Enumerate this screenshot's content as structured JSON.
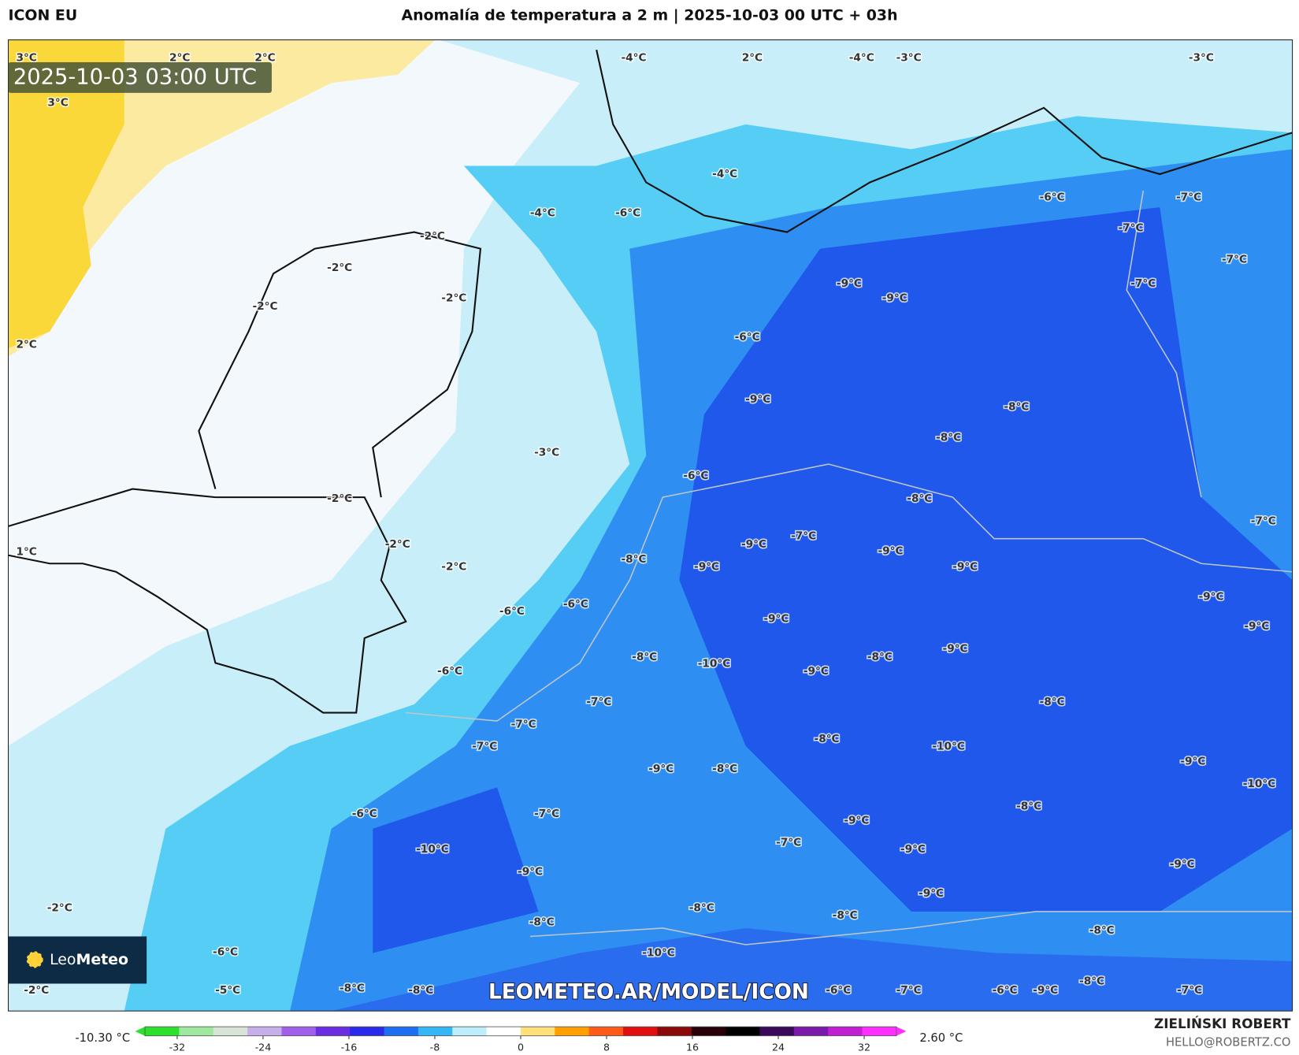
{
  "header": {
    "model": "ICON EU",
    "title": "Anomalía de temperatura a 2 m | 2025-10-03 00 UTC + 03h"
  },
  "timestamp": "2025-10-03 03:00 UTC",
  "logo": {
    "part1": "Leo",
    "part2": "Meteo"
  },
  "watermark": "LEOMETEO.AR/MODEL/ICON",
  "map": {
    "labels": [
      "3°C",
      "2°C",
      "2°C",
      "3°C",
      "2°C",
      "1°C",
      "-2°C",
      "-2°C",
      "-6°C",
      "-5°C",
      "-4°C",
      "2°C",
      "-4°C",
      "-3°C",
      "-3°C",
      "-4°C",
      "-4°C",
      "-6°C",
      "-2°C",
      "-2°C",
      "-2°C",
      "-2°C",
      "-6°C",
      "-7°C",
      "-7°C",
      "-7°C",
      "-7°C",
      "-9°C",
      "-9°C",
      "-6°C",
      "-9°C",
      "-8°C",
      "-8°C",
      "-3°C",
      "-6°C",
      "-2°C",
      "-8°C",
      "-7°C",
      "-2°C",
      "-9°C",
      "-7°C",
      "-9°C",
      "-9°C",
      "-2°C",
      "-8°C",
      "-9°C",
      "-9°C",
      "-6°C",
      "-6°C",
      "-9°C",
      "-9°C",
      "-9°C",
      "-8°C",
      "-10°C",
      "-9°C",
      "-8°C",
      "-6°C",
      "-8°C",
      "-7°C",
      "-7°C",
      "-7°C",
      "-8°C",
      "-10°C",
      "-9°C",
      "-10°C",
      "-9°C",
      "-8°C",
      "-6°C",
      "-7°C",
      "-8°C",
      "-9°C",
      "-7°C",
      "-10°C",
      "-9°C",
      "-9°C",
      "-9°C",
      "-9°C",
      "-8°C",
      "-8°C",
      "-8°C",
      "-8°C",
      "-10°C",
      "-8°C",
      "-8°C",
      "-8°C",
      "-6°C",
      "-7°C",
      "-6°C",
      "-9°C",
      "-7°C"
    ]
  },
  "colorbar": {
    "min_label": "-10.30 °C",
    "max_label": "2.60 °C",
    "lim": [
      -35,
      35
    ],
    "ticks": [
      -32,
      -24,
      -16,
      -8,
      0,
      8,
      16,
      24,
      32
    ],
    "colors": [
      "#2ee02e",
      "#9fe89f",
      "#d8e4d8",
      "#c7b0ea",
      "#a060e8",
      "#6a2ee0",
      "#2a2ae8",
      "#1f6ef0",
      "#35b7f5",
      "#bfeefb",
      "#ffffff",
      "#ffe07a",
      "#ffa000",
      "#ff5a1a",
      "#e01010",
      "#8a0a0a",
      "#2a0008",
      "#000000",
      "#3a0a5a",
      "#7a1aa8",
      "#c020d0",
      "#ff30ff"
    ]
  },
  "credits": {
    "author": "ZIELIŃSKI ROBERT",
    "email": "HELLO@ROBERTZ.CO"
  }
}
